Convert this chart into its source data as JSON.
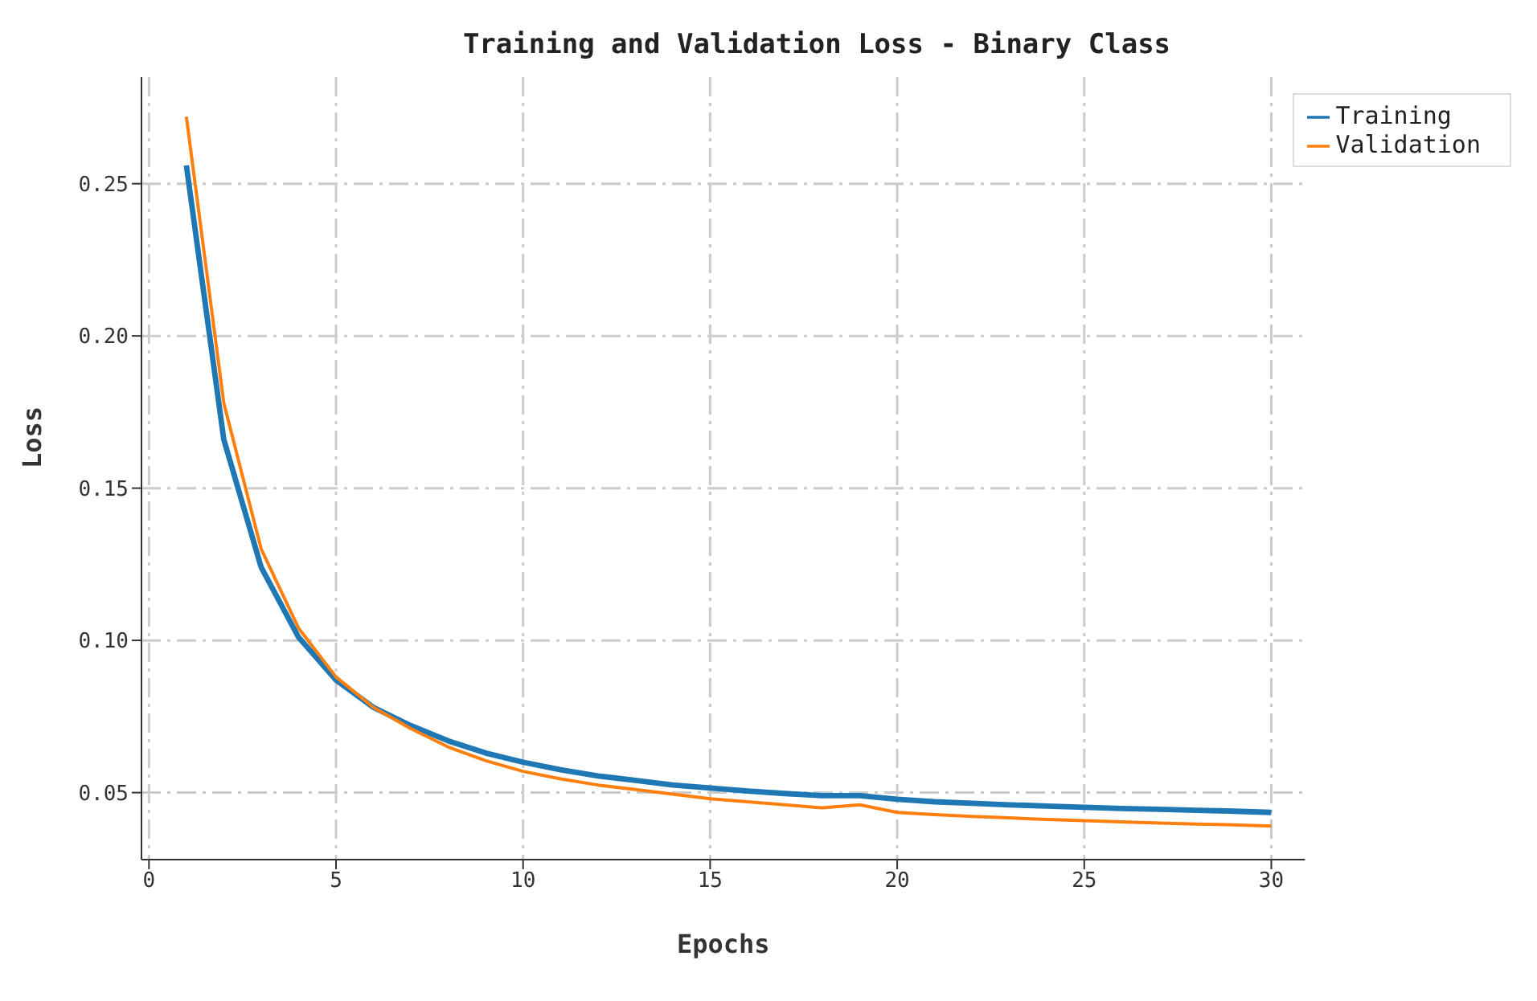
{
  "chart_data": {
    "type": "line",
    "title": "Training and Validation Loss - Binary Class",
    "xlabel": "Epochs",
    "ylabel": "Loss",
    "x": [
      1,
      2,
      3,
      4,
      5,
      6,
      7,
      8,
      9,
      10,
      11,
      12,
      13,
      14,
      15,
      16,
      17,
      18,
      19,
      20,
      21,
      22,
      23,
      24,
      25,
      26,
      27,
      28,
      29,
      30
    ],
    "series": [
      {
        "name": "Training",
        "color": "#1f77b4",
        "values": [
          0.256,
          0.166,
          0.124,
          0.101,
          0.087,
          0.078,
          0.072,
          0.067,
          0.063,
          0.06,
          0.0575,
          0.0555,
          0.054,
          0.0525,
          0.0515,
          0.0505,
          0.0497,
          0.049,
          0.049,
          0.0478,
          0.047,
          0.0465,
          0.046,
          0.0456,
          0.0452,
          0.0448,
          0.0445,
          0.0442,
          0.0439,
          0.0435
        ]
      },
      {
        "name": "Validation",
        "color": "#ff7f0e",
        "values": [
          0.272,
          0.178,
          0.13,
          0.104,
          0.088,
          0.078,
          0.071,
          0.065,
          0.0605,
          0.057,
          0.0545,
          0.0525,
          0.051,
          0.0495,
          0.048,
          0.047,
          0.046,
          0.045,
          0.046,
          0.0435,
          0.0428,
          0.0422,
          0.0417,
          0.0412,
          0.0408,
          0.0404,
          0.04,
          0.0397,
          0.0394,
          0.039
        ]
      }
    ],
    "xlim": [
      -0.2,
      30.9
    ],
    "xticks": [
      0,
      5,
      10,
      15,
      20,
      25,
      30
    ],
    "ylim": [
      0.028,
      0.285
    ],
    "yticks": [
      0.05,
      {
        "value": 0.1,
        "label": "0.10"
      },
      0.15,
      {
        "value": 0.2,
        "label": "0.20"
      },
      0.25
    ],
    "grid": true,
    "legend": "top right",
    "line_style": "solid",
    "marker": "none"
  }
}
